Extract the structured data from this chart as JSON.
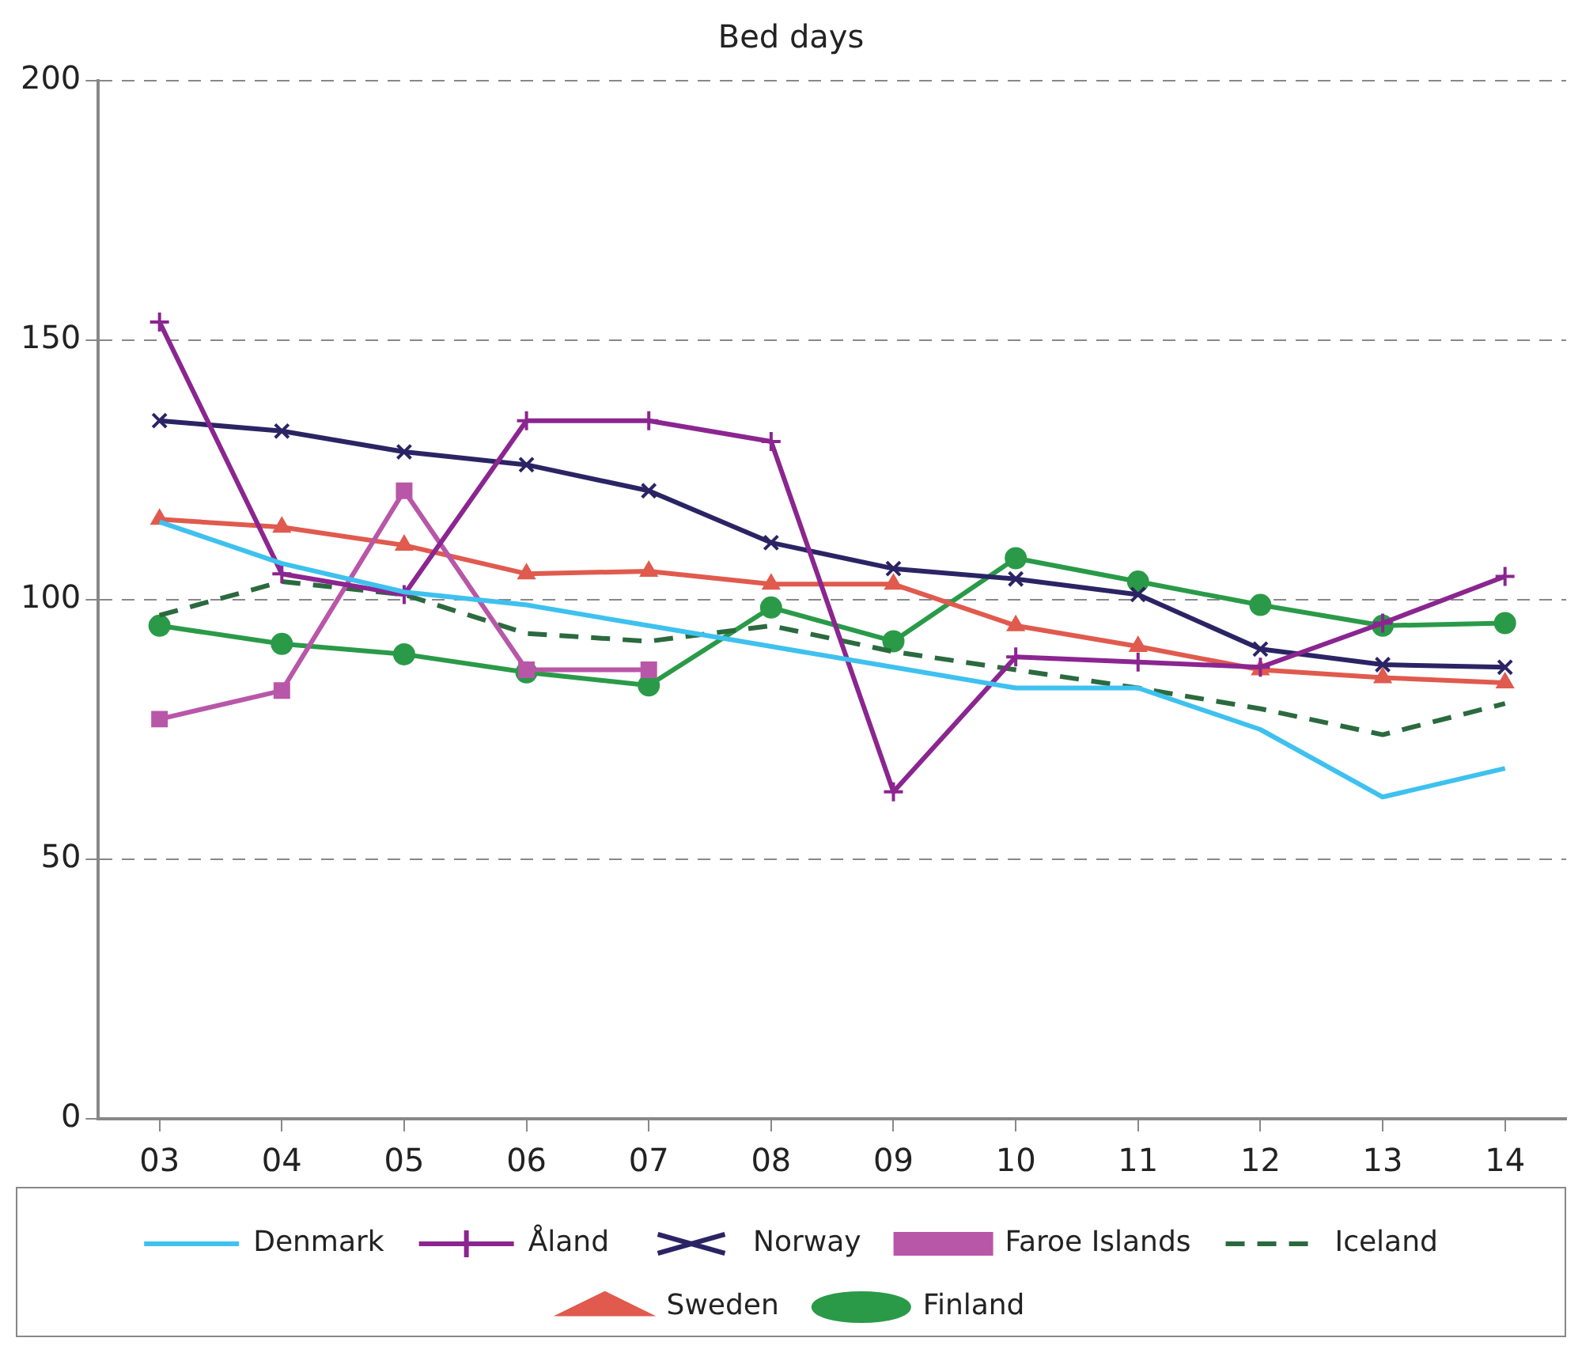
{
  "chart_data": {
    "type": "line",
    "title": "Bed days",
    "categories": [
      "03",
      "04",
      "05",
      "06",
      "07",
      "08",
      "09",
      "10",
      "11",
      "12",
      "13",
      "14"
    ],
    "ylim": [
      0,
      200
    ],
    "yticks": [
      0,
      50,
      100,
      150,
      200
    ],
    "grid": "y",
    "legend": "bottom",
    "line_style": "solid",
    "series": [
      {
        "name": "Denmark",
        "color": "#3ec1ef",
        "marker": "none",
        "values": [
          115,
          107,
          101.5,
          99,
          95,
          91,
          87,
          83,
          83,
          75,
          62,
          67.5
        ]
      },
      {
        "name": "Åland",
        "color": "#8b2590",
        "marker": "cross",
        "values": [
          153.5,
          105,
          101,
          134.5,
          134.5,
          130.5,
          63,
          89,
          88,
          87,
          95.5,
          104.5
        ]
      },
      {
        "name": "Norway",
        "color": "#2b2464",
        "marker": "x",
        "values": [
          134.5,
          132.5,
          128.5,
          126,
          121,
          111,
          106,
          104,
          101,
          90.5,
          87.5,
          87
        ]
      },
      {
        "name": "Faroe Islands",
        "color": "#b857a8",
        "marker": "square",
        "values": [
          77,
          82.5,
          121,
          86.5,
          86.5,
          null,
          null,
          null,
          null,
          null,
          null,
          null
        ]
      },
      {
        "name": "Iceland",
        "color": "#2b6a3e",
        "marker": "none",
        "line_style": "dashed",
        "values": [
          97,
          103.5,
          101,
          93.5,
          92,
          95,
          90,
          86.5,
          83,
          79,
          74,
          80
        ]
      },
      {
        "name": "Sweden",
        "color": "#e05a4e",
        "marker": "triangle",
        "values": [
          115.5,
          114,
          110.5,
          105,
          105.5,
          103,
          103,
          95,
          91,
          86.5,
          85,
          84
        ]
      },
      {
        "name": "Finland",
        "color": "#2a9a48",
        "marker": "circle",
        "values": [
          95,
          91.5,
          89.5,
          86,
          83.5,
          98.5,
          92,
          108,
          103.5,
          99,
          95,
          95.5
        ]
      }
    ]
  }
}
